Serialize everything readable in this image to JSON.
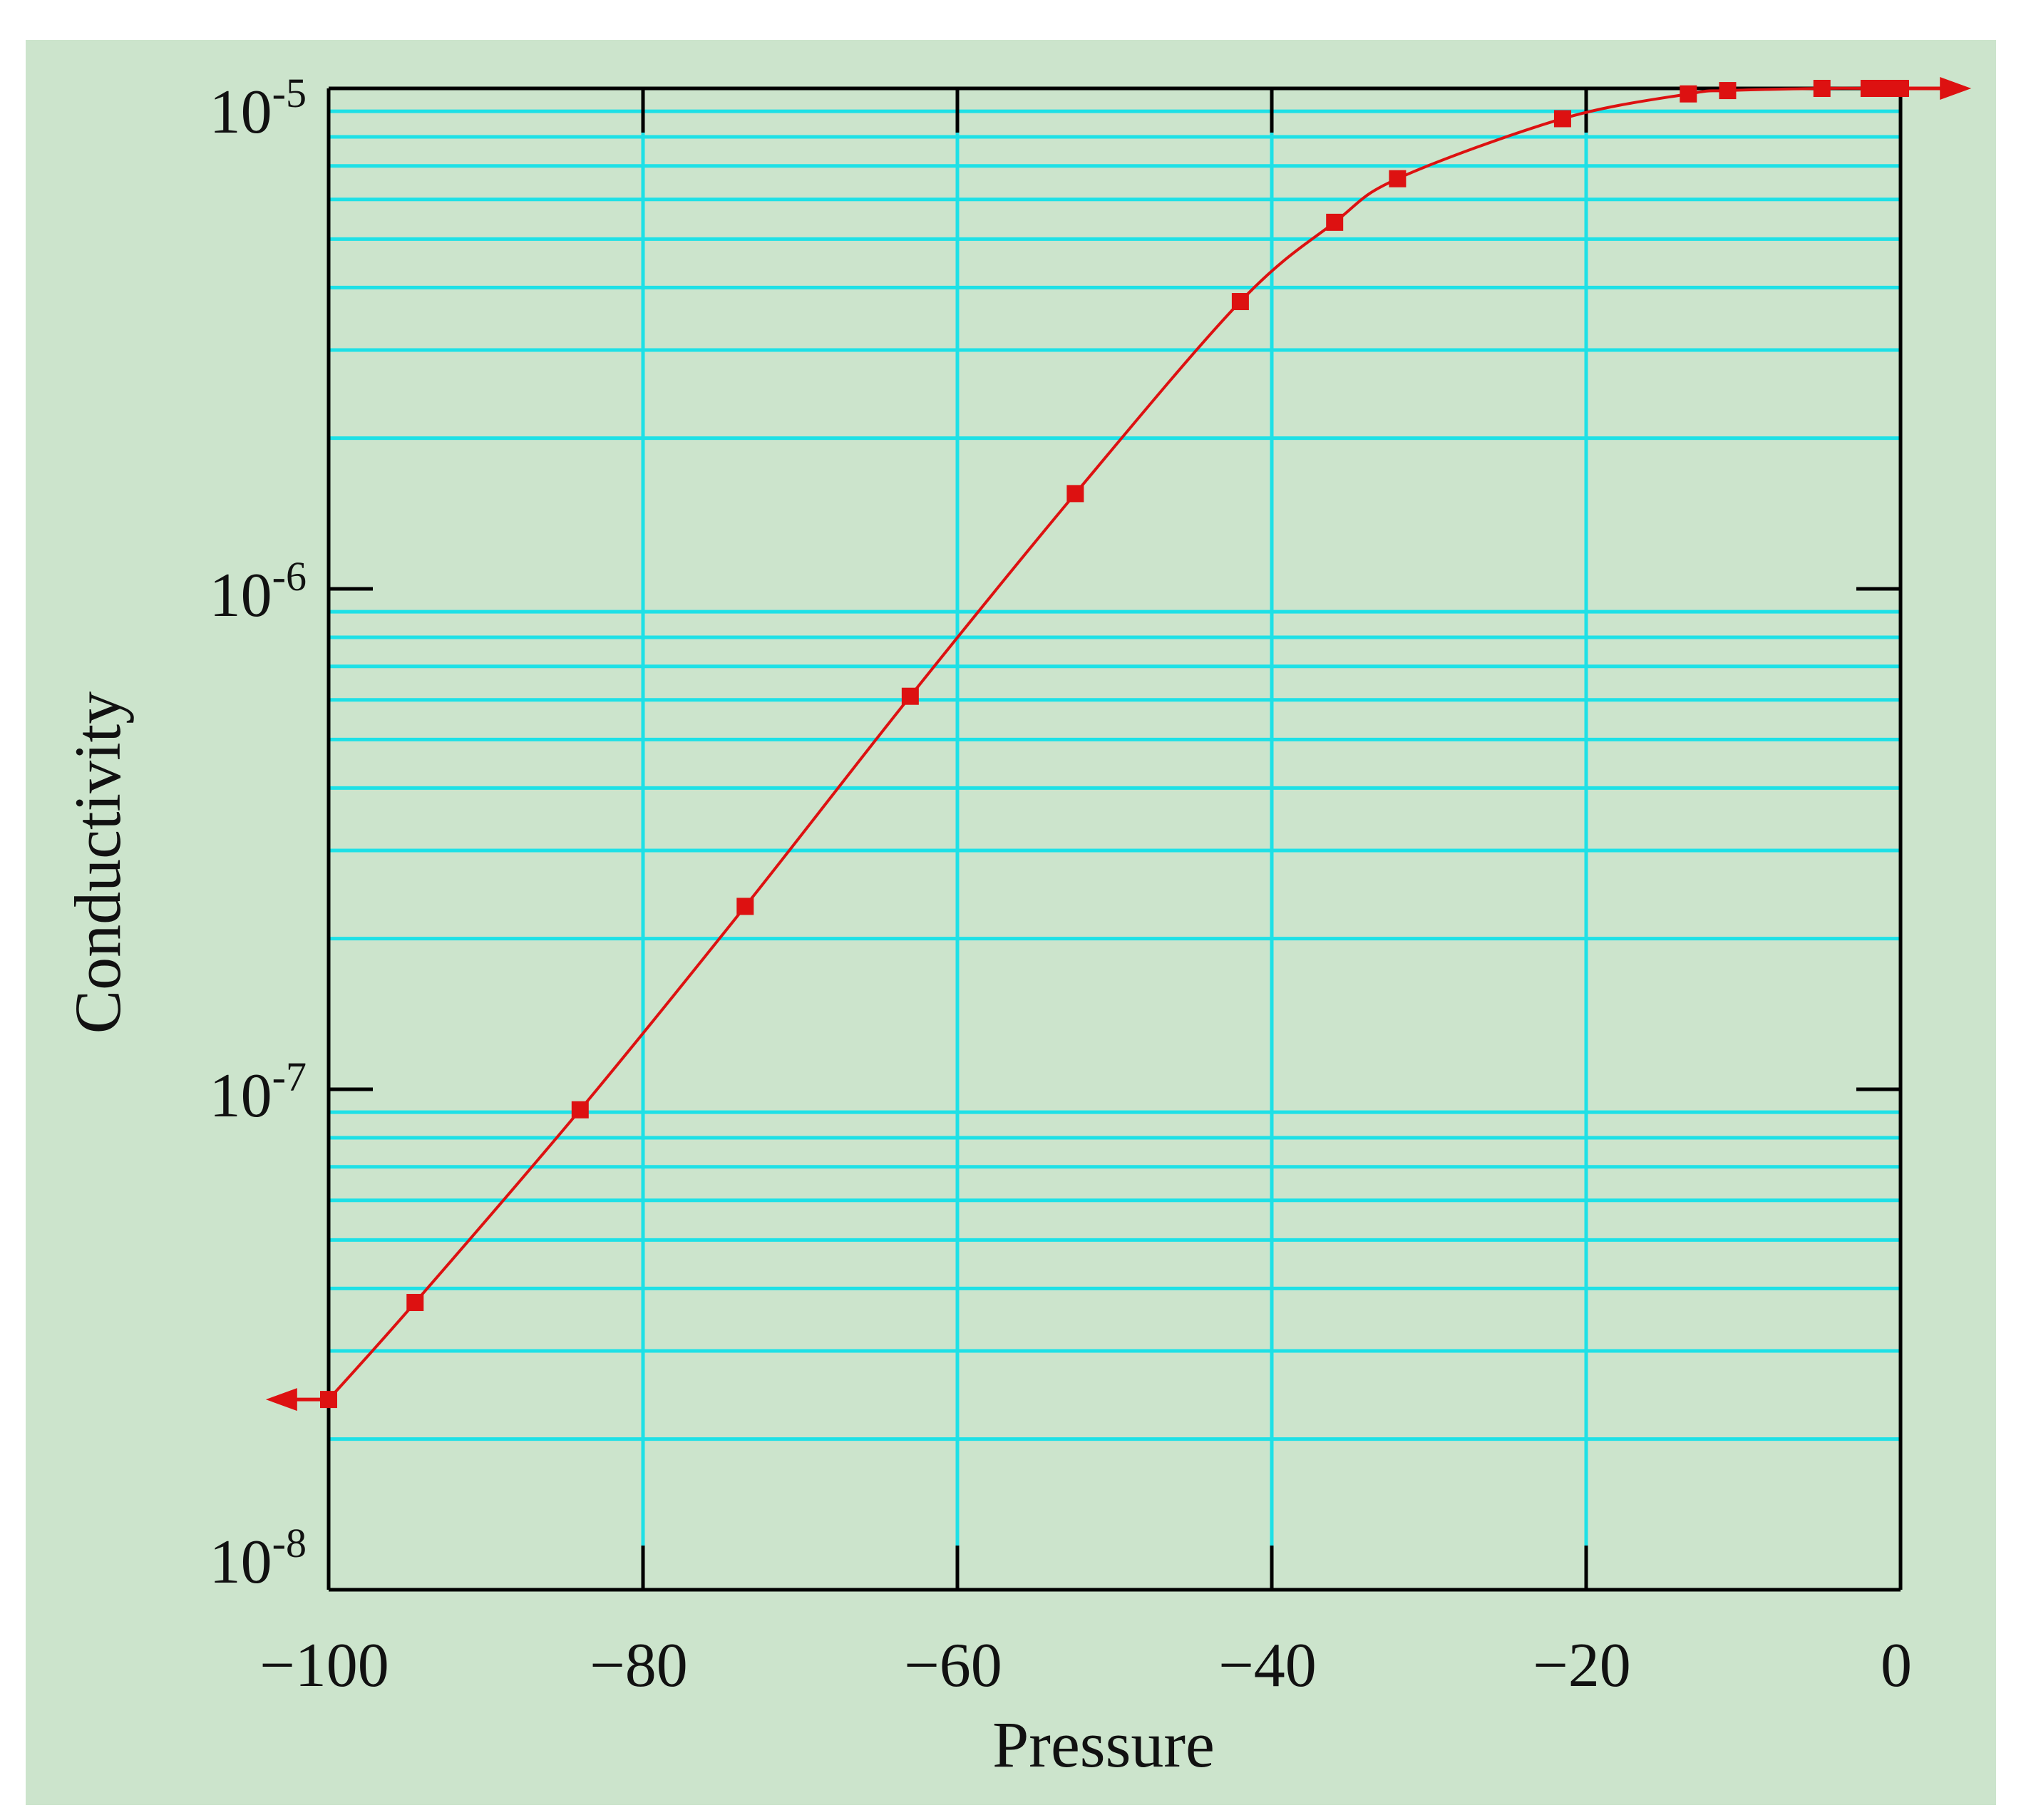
{
  "chart_data": {
    "type": "line",
    "xlabel": "Pressure",
    "ylabel": "Conductivity",
    "xlim": [
      -100,
      0
    ],
    "ylim": [
      1e-08,
      1e-05
    ],
    "yscale": "log",
    "grid": true,
    "x_ticks": [
      {
        "value": -100,
        "label": "−100"
      },
      {
        "value": -80,
        "label": "−80"
      },
      {
        "value": -60,
        "label": "−60"
      },
      {
        "value": -40,
        "label": "−40"
      },
      {
        "value": -20,
        "label": "−20"
      },
      {
        "value": 0,
        "label": "0"
      }
    ],
    "y_ticks": [
      {
        "value": 1e-05,
        "base": "10",
        "exp": "-5"
      },
      {
        "value": 1e-06,
        "base": "10",
        "exp": "-6"
      },
      {
        "value": 1e-07,
        "base": "10",
        "exp": "-7"
      },
      {
        "value": 1e-08,
        "base": "10",
        "exp": "-8"
      }
    ],
    "series": [
      {
        "x": [
          -100,
          -94.5,
          -84,
          -73.5,
          -63,
          -52.5,
          -42,
          -36,
          -32,
          -21.5,
          -13.5,
          -11,
          -5,
          -2,
          -1,
          0
        ],
        "y": [
          2.4e-08,
          3.75e-08,
          9.1e-08,
          2.32e-07,
          6.1e-07,
          1.55e-06,
          3.75e-06,
          5.4e-06,
          6.6e-06,
          8.7e-06,
          9.75e-06,
          9.9e-06,
          1e-05,
          1e-05,
          1e-05,
          1e-05
        ]
      }
    ],
    "extrapolation": {
      "left_x": -104,
      "right_x": 4.5
    },
    "colors": {
      "background": "#cce4cc",
      "grid": "#1ee0e6",
      "axis": "#000000",
      "series": "#dd1111"
    }
  }
}
